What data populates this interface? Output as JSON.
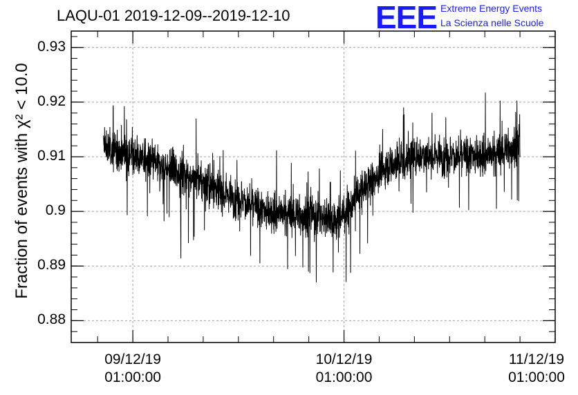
{
  "title": "LAQU-01 2019-12-09--2019-12-10",
  "logo": {
    "mark": "EEE",
    "line1": "Extreme Energy Events",
    "line2": "La Scienza nelle Scuole",
    "color": "#1a1aff"
  },
  "chart_data": {
    "type": "line",
    "title": "LAQU-01 2019-12-09--2019-12-10",
    "xlabel": "",
    "ylabel": "Fraction of events with χ² < 10.0",
    "ylim": [
      0.876,
      0.933
    ],
    "xlim": [
      "2019-12-08T18:00:00",
      "2019-12-11T01:00:00"
    ],
    "grid": true,
    "yticks": [
      0.88,
      0.89,
      0.9,
      0.91,
      0.92,
      0.93
    ],
    "ytick_labels": [
      "0.88",
      "0.89",
      "0.9",
      "0.91",
      "0.92",
      "0.93"
    ],
    "xticks": [
      {
        "date": "2019-12-09T01:00:00",
        "line1": "09/12/19",
        "line2": "01:00:00"
      },
      {
        "date": "2019-12-10T01:00:00",
        "line1": "10/12/19",
        "line2": "01:00:00"
      },
      {
        "date": "2019-12-11T01:00:00",
        "line1": "11/12/19",
        "line2": "01:00:00"
      }
    ],
    "series": [
      {
        "color": "#000000",
        "x": [
          "2019-12-08T21:40",
          "2019-12-09T01:00",
          "2019-12-09T04:00",
          "2019-12-09T08:00",
          "2019-12-09T12:00",
          "2019-12-09T16:00",
          "2019-12-09T20:00",
          "2019-12-10T00:00",
          "2019-12-10T01:00",
          "2019-12-10T03:00",
          "2019-12-10T06:00",
          "2019-12-10T10:00",
          "2019-12-10T14:00",
          "2019-12-10T18:00",
          "2019-12-10T21:00"
        ],
        "y": [
          0.9115,
          0.9105,
          0.9085,
          0.906,
          0.903,
          0.9,
          0.8995,
          0.8985,
          0.8995,
          0.904,
          0.9085,
          0.9105,
          0.91,
          0.9105,
          0.9125
        ],
        "amplitude": 0.0055
      }
    ]
  }
}
